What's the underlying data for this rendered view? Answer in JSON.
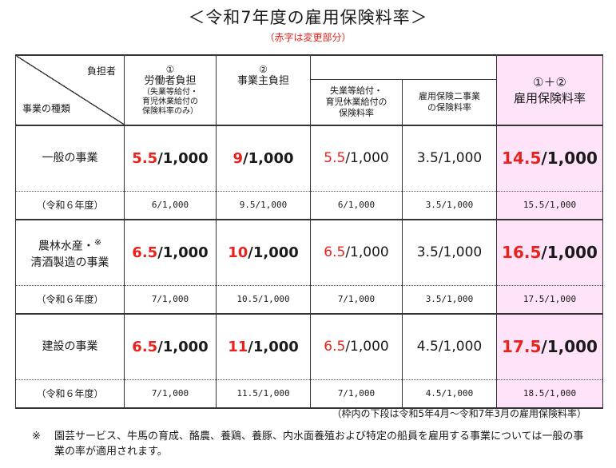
{
  "title": "＜令和7年度の雇用保険料率＞",
  "subtitle": "（赤字は変更部分）",
  "header": {
    "corner_top": "負担者",
    "corner_bottom": "事業の種類",
    "worker": {
      "num": "①",
      "label": "労働者負担",
      "sub1": "（失業等給付・",
      "sub2": "育児休業給付の",
      "sub3": "保険料率のみ）"
    },
    "employer": {
      "num": "②",
      "label": "事業主負担"
    },
    "employer_sub1": {
      "line1": "失業等給付・",
      "line2": "育児休業給付の",
      "line3": "保険料率"
    },
    "employer_sub2": {
      "line1": "雇用保険二事業",
      "line2": "の保険料率"
    },
    "total": {
      "num": "①＋②",
      "label": "雇用保険料率"
    }
  },
  "rows": [
    {
      "category": "一般の事業",
      "worker": {
        "hi": "5.5",
        "rest": "/1,000"
      },
      "employer": {
        "hi": "9",
        "rest": "/1,000"
      },
      "emp_sub1": {
        "hi": "5.5",
        "rest": "/1,000"
      },
      "emp_sub2": "3.5/1,000",
      "total": {
        "hi": "14.5",
        "rest": "/1,000"
      },
      "prev_label": "（令和６年度）",
      "prev": [
        "6/1,000",
        "9.5/1,000",
        "6/1,000",
        "3.5/1,000",
        "15.5/1,000"
      ]
    },
    {
      "category_line1": "農林水産・",
      "category_mark": "※",
      "category_line2": "清酒製造の事業",
      "worker": {
        "hi": "6.5",
        "rest": "/1,000"
      },
      "employer": {
        "hi": "10",
        "rest": "/1,000"
      },
      "emp_sub1": {
        "hi": "6.5",
        "rest": "/1,000"
      },
      "emp_sub2": "3.5/1,000",
      "total": {
        "hi": "16.5",
        "rest": "/1,000"
      },
      "prev_label": "（令和６年度）",
      "prev": [
        "7/1,000",
        "10.5/1,000",
        "7/1,000",
        "3.5/1,000",
        "17.5/1,000"
      ]
    },
    {
      "category": "建設の事業",
      "worker": {
        "hi": "6.5",
        "rest": "/1,000"
      },
      "employer": {
        "hi": "11",
        "rest": "/1,000"
      },
      "emp_sub1": {
        "hi": "6.5",
        "rest": "/1,000"
      },
      "emp_sub2": "4.5/1,000",
      "total": {
        "hi": "17.5",
        "rest": "/1,000"
      },
      "prev_label": "（令和６年度）",
      "prev": [
        "7/1,000",
        "11.5/1,000",
        "7/1,000",
        "4.5/1,000",
        "18.5/1,000"
      ]
    }
  ],
  "note_period": "（枠内の下段は令和5年4月～令和7年3月の雇用保険料率）",
  "footnote": {
    "mark": "※",
    "text": "園芸サービス、牛馬の育成、酪農、養鶏、養豚、内水面養殖および特定の船員を雇用する事業については一般の事業の率が適用されます。"
  },
  "colors": {
    "accent_red": "#e8231e",
    "total_bg": "#ffe3f8"
  }
}
